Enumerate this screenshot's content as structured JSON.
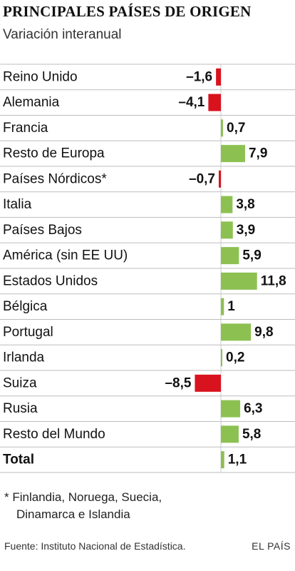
{
  "title": "PRINCIPALES PAÍSES DE ORIGEN",
  "subtitle": "Variación interanual",
  "chart_data": {
    "type": "bar",
    "orientation": "horizontal",
    "categories": [
      "Reino Unido",
      "Alemania",
      "Francia",
      "Resto de Europa",
      "Países Nórdicos*",
      "Italia",
      "Países Bajos",
      "América (sin EE UU)",
      "Estados Unidos",
      "Bélgica",
      "Portugal",
      "Irlanda",
      "Suiza",
      "Rusia",
      "Resto del Mundo",
      "Total"
    ],
    "values": [
      -1.6,
      -4.1,
      0.7,
      7.9,
      -0.7,
      3.8,
      3.9,
      5.9,
      11.8,
      1,
      9.8,
      0.2,
      -8.5,
      6.3,
      5.8,
      1.1
    ],
    "value_labels": [
      "–1,6",
      "–4,1",
      "0,7",
      "7,9",
      "–0,7",
      "3,8",
      "3,9",
      "5,9",
      "11,8",
      "1",
      "9,8",
      "0,2",
      "–8,5",
      "6,3",
      "5,8",
      "1,1"
    ],
    "bold_categories": [
      "Total"
    ],
    "colors": {
      "positive": "#8cc152",
      "negative": "#d9131e",
      "divider": "#bdbdbd",
      "axis": "#cccccc"
    }
  },
  "footnote": [
    "* Finlandia, Noruega, Suecia,",
    "Dinamarca e Islandia"
  ],
  "source": "Fuente: Instituto Nacional de Estadística.",
  "brand": "EL PAÍS"
}
